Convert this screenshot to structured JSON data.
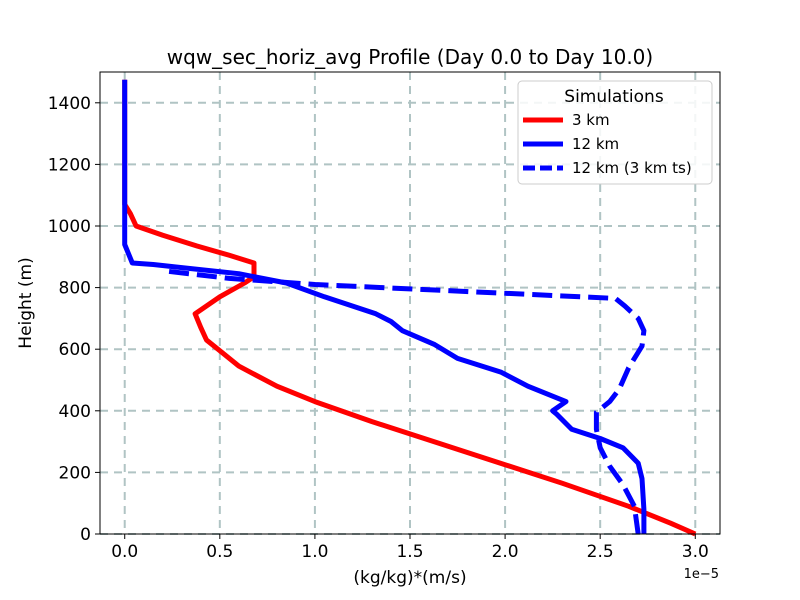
{
  "chart_data": {
    "type": "line",
    "title": "wqw_sec_horiz_avg Profile (Day 0.0 to Day 10.0)",
    "xlabel": "(kg/kg)*(m/s)",
    "ylabel": "Height (m)",
    "x_offset_label": "1e−5",
    "xlim": [
      -0.13,
      3.13
    ],
    "ylim": [
      0,
      1500
    ],
    "xticks": [
      0.0,
      0.5,
      1.0,
      1.5,
      2.0,
      2.5,
      3.0
    ],
    "xtick_labels": [
      "0.0",
      "0.5",
      "1.0",
      "1.5",
      "2.0",
      "2.5",
      "3.0"
    ],
    "yticks": [
      0,
      200,
      400,
      600,
      800,
      1000,
      1200,
      1400
    ],
    "ytick_labels": [
      "0",
      "200",
      "400",
      "600",
      "800",
      "1000",
      "1200",
      "1400"
    ],
    "grid": true,
    "legend": {
      "title": "Simulations",
      "position": "top-right"
    },
    "series": [
      {
        "name": "3 km",
        "color": "#ff0000",
        "style": "solid",
        "points": [
          [
            3.0,
            0
          ],
          [
            2.87,
            35
          ],
          [
            2.65,
            90
          ],
          [
            2.3,
            165
          ],
          [
            2.0,
            225
          ],
          [
            1.65,
            295
          ],
          [
            1.3,
            365
          ],
          [
            1.0,
            430
          ],
          [
            0.8,
            480
          ],
          [
            0.6,
            545
          ],
          [
            0.5,
            595
          ],
          [
            0.43,
            630
          ],
          [
            0.4,
            670
          ],
          [
            0.37,
            715
          ],
          [
            0.5,
            770
          ],
          [
            0.63,
            815
          ],
          [
            0.68,
            835
          ],
          [
            0.68,
            880
          ],
          [
            0.55,
            905
          ],
          [
            0.38,
            935
          ],
          [
            0.2,
            970
          ],
          [
            0.06,
            1000
          ],
          [
            0.03,
            1040
          ],
          [
            0.0,
            1070
          ],
          [
            0.0,
            1475
          ]
        ]
      },
      {
        "name": "12 km",
        "color": "#0000ff",
        "style": "solid",
        "points": [
          [
            2.73,
            0
          ],
          [
            2.73,
            80
          ],
          [
            2.72,
            180
          ],
          [
            2.7,
            230
          ],
          [
            2.62,
            280
          ],
          [
            2.5,
            310
          ],
          [
            2.35,
            340
          ],
          [
            2.27,
            390
          ],
          [
            2.25,
            400
          ],
          [
            2.32,
            430
          ],
          [
            2.12,
            480
          ],
          [
            1.98,
            525
          ],
          [
            1.75,
            570
          ],
          [
            1.63,
            615
          ],
          [
            1.46,
            660
          ],
          [
            1.4,
            690
          ],
          [
            1.32,
            715
          ],
          [
            1.05,
            770
          ],
          [
            0.85,
            815
          ],
          [
            0.6,
            845
          ],
          [
            0.3,
            865
          ],
          [
            0.15,
            875
          ],
          [
            0.04,
            880
          ],
          [
            0.0,
            940
          ],
          [
            0.0,
            1040
          ],
          [
            0.0,
            1475
          ]
        ]
      },
      {
        "name": "12 km (3 km ts)",
        "color": "#0000ff",
        "style": "dashed",
        "points": [
          [
            2.7,
            0
          ],
          [
            2.68,
            90
          ],
          [
            2.62,
            160
          ],
          [
            2.55,
            220
          ],
          [
            2.5,
            280
          ],
          [
            2.48,
            340
          ],
          [
            2.48,
            395
          ],
          [
            2.55,
            430
          ],
          [
            2.6,
            470
          ],
          [
            2.65,
            540
          ],
          [
            2.72,
            610
          ],
          [
            2.73,
            660
          ],
          [
            2.7,
            700
          ],
          [
            2.63,
            740
          ],
          [
            2.58,
            765
          ],
          [
            1.0,
            810
          ],
          [
            0.55,
            830
          ],
          [
            0.2,
            855
          ]
        ]
      }
    ]
  }
}
